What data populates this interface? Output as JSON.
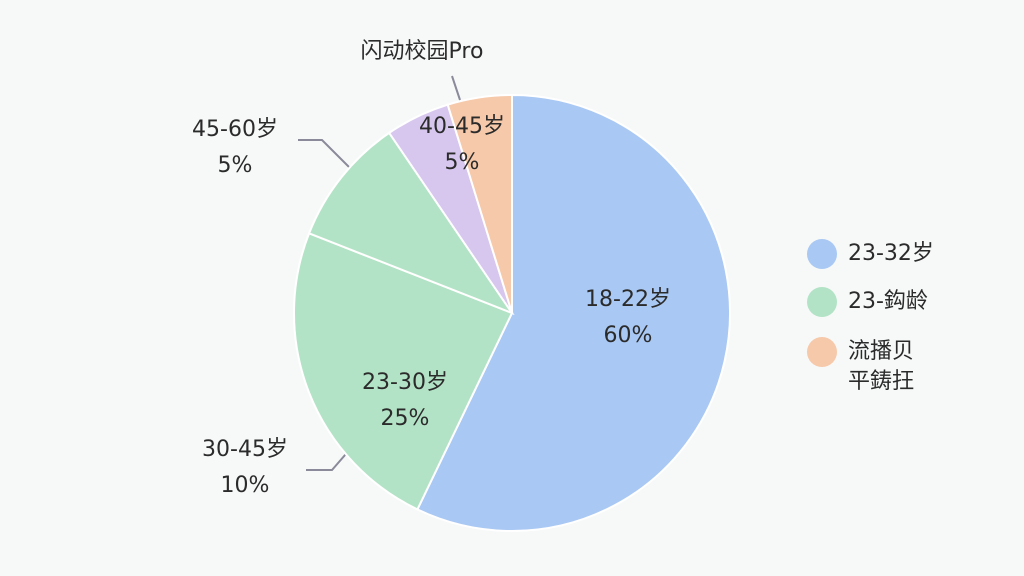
{
  "chart_data": {
    "type": "pie",
    "title": "闪动校园Pro",
    "categories": [
      "18-22岁",
      "23-30岁",
      "30-45岁",
      "45-60岁",
      "40-45岁"
    ],
    "values": [
      60,
      25,
      10,
      5,
      5
    ],
    "value_labels": [
      "60%",
      "25%",
      "10%",
      "5%",
      "5%"
    ],
    "colors": [
      "#a9c8f3",
      "#b3e3c6",
      "#b3e3c6",
      "#d7c7ef",
      "#f6c9aa"
    ],
    "legend": [
      {
        "name": "23-32岁",
        "color": "#a9c8f3"
      },
      {
        "name": "23-鈎龄",
        "color": "#b3e3c6"
      },
      {
        "name": "流播贝 平鋳抂",
        "color": "#f6c9aa"
      }
    ]
  }
}
